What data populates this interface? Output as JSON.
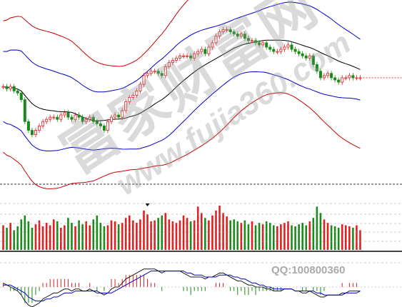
{
  "watermark": {
    "text_cn": "富家财富网",
    "text_en": "www.fujia360.com",
    "qq": "QQ:100800360"
  },
  "colors": {
    "up": "#e02020",
    "down": "#1a8a1a",
    "ma_black": "#000000",
    "band_blue": "#0000cc",
    "band_red": "#cc0000",
    "macd_white": "#1a1a1a"
  },
  "chart_data": {
    "type": "candlestick",
    "title": "",
    "xlabel": "",
    "ylabel": "",
    "price_range": [
      0,
      100
    ],
    "close": [
      82,
      81,
      82,
      80,
      79,
      76,
      66,
      62,
      60,
      62,
      64,
      66,
      67,
      68,
      68,
      67,
      69,
      70,
      68,
      67,
      69,
      68,
      66,
      67,
      68,
      66,
      65,
      64,
      62,
      66,
      68,
      69,
      68,
      71,
      75,
      77,
      78,
      80,
      83,
      87,
      88,
      89,
      89,
      88,
      87,
      91,
      93,
      94,
      95,
      96,
      96,
      96,
      95,
      97,
      98,
      99,
      97,
      100,
      102,
      105,
      107,
      108,
      108,
      107,
      106,
      105,
      106,
      104,
      103,
      103,
      102,
      101,
      102,
      100,
      99,
      98,
      98,
      99,
      100,
      101,
      99,
      98,
      97,
      96,
      95,
      96,
      92,
      89,
      86,
      87,
      88,
      86,
      85,
      84,
      86,
      86,
      87,
      86,
      86,
      86
    ],
    "volume": [
      50,
      45,
      55,
      40,
      48,
      62,
      70,
      58,
      45,
      52,
      60,
      48,
      55,
      50,
      62,
      58,
      45,
      50,
      65,
      55,
      48,
      60,
      52,
      58,
      50,
      62,
      70,
      55,
      48,
      50,
      60,
      58,
      52,
      55,
      65,
      70,
      60,
      55,
      62,
      80,
      72,
      58,
      60,
      65,
      70,
      75,
      62,
      58,
      55,
      60,
      70,
      65,
      58,
      60,
      88,
      75,
      65,
      60,
      70,
      80,
      90,
      75,
      68,
      60,
      62,
      58,
      55,
      60,
      52,
      58,
      50,
      55,
      52,
      58,
      55,
      50,
      48,
      52,
      55,
      58,
      50,
      48,
      52,
      55,
      50,
      58,
      65,
      88,
      75,
      62,
      55,
      50,
      48,
      45,
      52,
      50,
      48,
      45,
      50,
      40
    ],
    "macd_dif": [
      0.2,
      0.1,
      0.0,
      -0.1,
      -0.2,
      -0.4,
      -0.7,
      -0.9,
      -1.0,
      -0.9,
      -0.8,
      -0.6,
      -0.5,
      -0.4,
      -0.3,
      -0.3,
      -0.2,
      -0.1,
      -0.1,
      -0.2,
      -0.1,
      -0.1,
      -0.2,
      -0.2,
      -0.1,
      -0.2,
      -0.3,
      -0.3,
      -0.4,
      -0.3,
      -0.1,
      0.0,
      0.0,
      0.2,
      0.4,
      0.5,
      0.6,
      0.7,
      0.8,
      0.9,
      0.9,
      0.9,
      0.9,
      0.8,
      0.7,
      0.8,
      0.8,
      0.8,
      0.8,
      0.8,
      0.7,
      0.6,
      0.5,
      0.5,
      0.5,
      0.5,
      0.4,
      0.5,
      0.5,
      0.6,
      0.7,
      0.7,
      0.6,
      0.5,
      0.4,
      0.3,
      0.3,
      0.2,
      0.1,
      0.1,
      0.0,
      0.0,
      0.0,
      -0.1,
      -0.1,
      -0.2,
      -0.2,
      -0.2,
      -0.1,
      -0.1,
      -0.1,
      -0.2,
      -0.2,
      -0.3,
      -0.3,
      -0.2,
      -0.3,
      -0.4,
      -0.5,
      -0.5,
      -0.4,
      -0.4,
      -0.4,
      -0.4,
      -0.3,
      -0.3,
      -0.2,
      -0.2,
      -0.2,
      -0.2
    ],
    "macd_dea": [
      0.1,
      0.1,
      0.1,
      0.0,
      -0.1,
      -0.2,
      -0.3,
      -0.5,
      -0.6,
      -0.7,
      -0.7,
      -0.7,
      -0.6,
      -0.6,
      -0.5,
      -0.5,
      -0.4,
      -0.3,
      -0.3,
      -0.3,
      -0.2,
      -0.2,
      -0.2,
      -0.2,
      -0.2,
      -0.2,
      -0.2,
      -0.3,
      -0.3,
      -0.3,
      -0.3,
      -0.2,
      -0.1,
      0.0,
      0.1,
      0.2,
      0.3,
      0.4,
      0.5,
      0.6,
      0.7,
      0.8,
      0.8,
      0.8,
      0.8,
      0.8,
      0.8,
      0.8,
      0.8,
      0.8,
      0.8,
      0.7,
      0.7,
      0.6,
      0.6,
      0.6,
      0.5,
      0.5,
      0.5,
      0.5,
      0.6,
      0.6,
      0.6,
      0.6,
      0.5,
      0.5,
      0.4,
      0.4,
      0.3,
      0.2,
      0.2,
      0.1,
      0.1,
      0.0,
      0.0,
      -0.1,
      -0.1,
      -0.1,
      -0.1,
      -0.1,
      -0.1,
      -0.2,
      -0.2,
      -0.2,
      -0.2,
      -0.2,
      -0.2,
      -0.3,
      -0.3,
      -0.4,
      -0.4,
      -0.4,
      -0.4,
      -0.4,
      -0.4,
      -0.3,
      -0.3,
      -0.3,
      -0.3,
      -0.2
    ]
  }
}
